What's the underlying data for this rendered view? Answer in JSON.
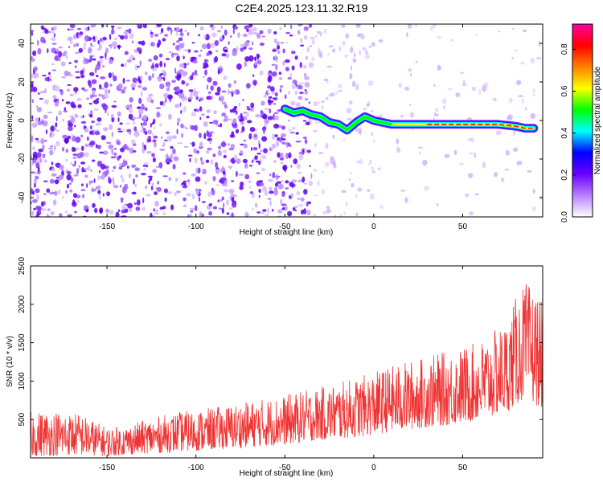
{
  "title": "C2E4.2025.123.11.32.R19",
  "chart_data": [
    {
      "type": "heatmap",
      "xlabel": "Height of straight line (km)",
      "ylabel": "Frequency (Hz)",
      "xlim": [
        -193,
        95
      ],
      "ylim": [
        -50,
        50
      ],
      "xticks": [
        -150,
        -100,
        -50,
        0,
        50
      ],
      "yticks": [
        -40,
        -20,
        0,
        20,
        40
      ],
      "colorbar": {
        "label": "Normalized spectral amplitude",
        "range": [
          0,
          0.92
        ],
        "ticks": [
          0.0,
          0.2,
          0.4,
          0.6,
          0.8
        ],
        "colormap": [
          "#ffffff",
          "#b87fff",
          "#6a00ff",
          "#0000ff",
          "#00ffff",
          "#00ff00",
          "#ffff00",
          "#ff8000",
          "#ff0000",
          "#ff00a0"
        ]
      },
      "ridge": {
        "x": [
          -50,
          -45,
          -40,
          -35,
          -30,
          -25,
          -20,
          -15,
          -10,
          -5,
          0,
          5,
          10,
          20,
          30,
          40,
          50,
          60,
          70,
          80,
          85,
          90
        ],
        "y": [
          6,
          4,
          5,
          3,
          2,
          -1,
          -2,
          -5,
          -1,
          2,
          0,
          -1,
          -2,
          -2,
          -2,
          -2,
          -2,
          -2,
          -2,
          -3,
          -4,
          -4
        ]
      },
      "background_noise": "dense purple speckle for x < -30 km, fading toward the right"
    },
    {
      "type": "line",
      "xlabel": "Height of straight line (km)",
      "ylabel": "SNR (10 * v/v)",
      "xlim": [
        -193,
        95
      ],
      "ylim": [
        0,
        2500
      ],
      "xticks": [
        -150,
        -100,
        -50,
        0,
        50
      ],
      "yticks": [
        500,
        1000,
        1500,
        2000,
        2500
      ],
      "color": "#f03232",
      "series": [
        {
          "x": [
            -193,
            -180,
            -165,
            -150,
            -140,
            -125,
            -110,
            -95,
            -80,
            -65,
            -50,
            -35,
            -20,
            -5,
            10,
            25,
            40,
            55,
            65,
            75,
            80,
            85,
            90,
            95
          ],
          "y_low": [
            20,
            30,
            40,
            20,
            40,
            60,
            80,
            100,
            120,
            150,
            170,
            220,
            250,
            280,
            340,
            380,
            420,
            470,
            520,
            600,
            680,
            780,
            700,
            650
          ],
          "y_high": [
            600,
            620,
            580,
            400,
            420,
            520,
            600,
            640,
            700,
            760,
            820,
            900,
            980,
            1080,
            1200,
            1300,
            1380,
            1480,
            1600,
            1800,
            2100,
            2300,
            2200,
            2000
          ]
        }
      ]
    }
  ]
}
